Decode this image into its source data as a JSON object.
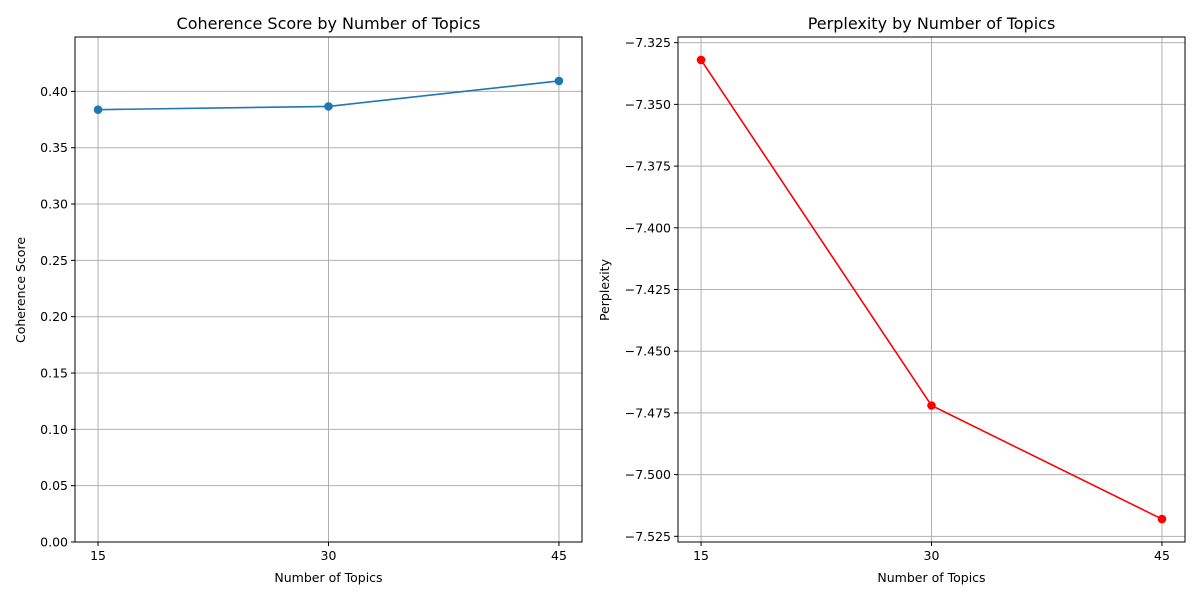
{
  "chart_data": [
    {
      "type": "line",
      "title": "Coherence Score by Number of Topics",
      "xlabel": "Number of Topics",
      "ylabel": "Coherence Score",
      "x": [
        15,
        30,
        45
      ],
      "x_tick_labels": [
        "15",
        "30",
        "45"
      ],
      "series": [
        {
          "values": [
            0.3838,
            0.3867,
            0.4093
          ],
          "color": "#1f77b4",
          "marker": "circle"
        }
      ],
      "xlim": [
        13.5,
        46.5
      ],
      "ylim": [
        0,
        0.4483
      ],
      "y_ticks": [
        0.0,
        0.05,
        0.1,
        0.15,
        0.2,
        0.25,
        0.3,
        0.35,
        0.4
      ],
      "y_tick_labels": [
        "0.00",
        "0.05",
        "0.10",
        "0.15",
        "0.20",
        "0.25",
        "0.30",
        "0.35",
        "0.40"
      ],
      "grid": true,
      "legend": "none"
    },
    {
      "type": "line",
      "title": "Perplexity by Number of Topics",
      "xlabel": "Number of Topics",
      "ylabel": "Perplexity",
      "x": [
        15,
        30,
        45
      ],
      "x_tick_labels": [
        "15",
        "30",
        "45"
      ],
      "series": [
        {
          "values": [
            -7.332,
            -7.472,
            -7.518
          ],
          "color": "#ff0000",
          "marker": "circle"
        }
      ],
      "xlim": [
        13.5,
        46.5
      ],
      "ylim": [
        -7.5273,
        -7.3227
      ],
      "y_ticks": [
        -7.525,
        -7.5,
        -7.475,
        -7.45,
        -7.425,
        -7.4,
        -7.375,
        -7.35,
        -7.325
      ],
      "y_tick_labels": [
        "−7.525",
        "−7.500",
        "−7.475",
        "−7.450",
        "−7.425",
        "−7.400",
        "−7.375",
        "−7.350",
        "−7.325"
      ],
      "grid": true,
      "legend": "none"
    }
  ]
}
